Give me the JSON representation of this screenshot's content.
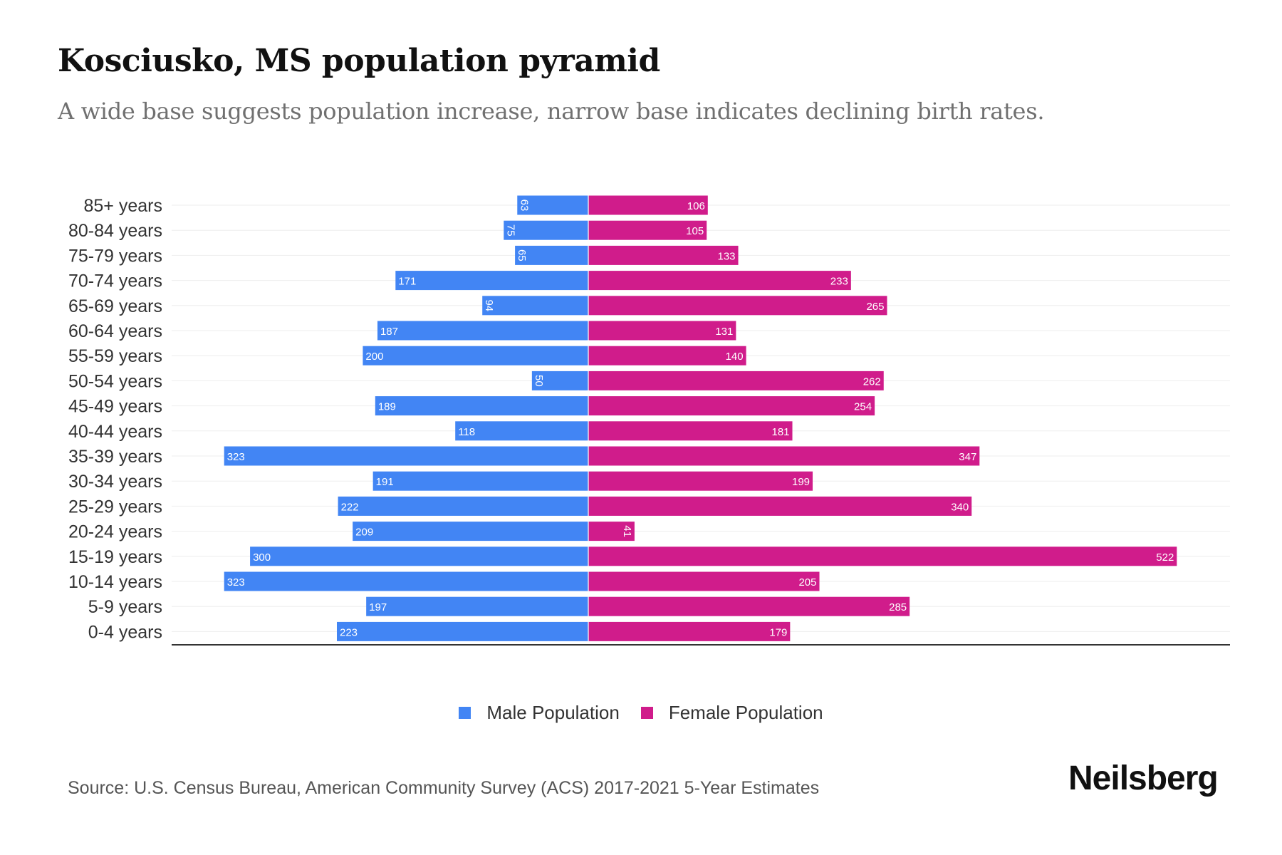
{
  "title": "Kosciusko, MS population pyramid",
  "subtitle": "A wide base suggests population increase, narrow base indicates declining birth rates.",
  "source": "Source: U.S. Census Bureau, American Community Survey (ACS) 2017-2021 5-Year Estimates",
  "logo": "Neilsberg",
  "colors": {
    "male": "#4285F4",
    "female": "#D01C8B"
  },
  "chart_data": {
    "type": "bar",
    "orientation": "horizontal-pyramid",
    "categories": [
      "85+ years",
      "80-84 years",
      "75-79 years",
      "70-74 years",
      "65-69 years",
      "60-64 years",
      "55-59 years",
      "50-54 years",
      "45-49 years",
      "40-44 years",
      "35-39 years",
      "30-34 years",
      "25-29 years",
      "20-24 years",
      "15-19 years",
      "10-14 years",
      "5-9 years",
      "0-4 years"
    ],
    "series": [
      {
        "name": "Male Population",
        "values": [
          63,
          75,
          65,
          171,
          94,
          187,
          200,
          50,
          189,
          118,
          323,
          191,
          222,
          209,
          300,
          323,
          197,
          223
        ]
      },
      {
        "name": "Female Population",
        "values": [
          106,
          105,
          133,
          233,
          265,
          131,
          140,
          262,
          254,
          181,
          347,
          199,
          340,
          41,
          522,
          205,
          285,
          179
        ]
      }
    ],
    "legend_position": "bottom",
    "grid": true
  }
}
